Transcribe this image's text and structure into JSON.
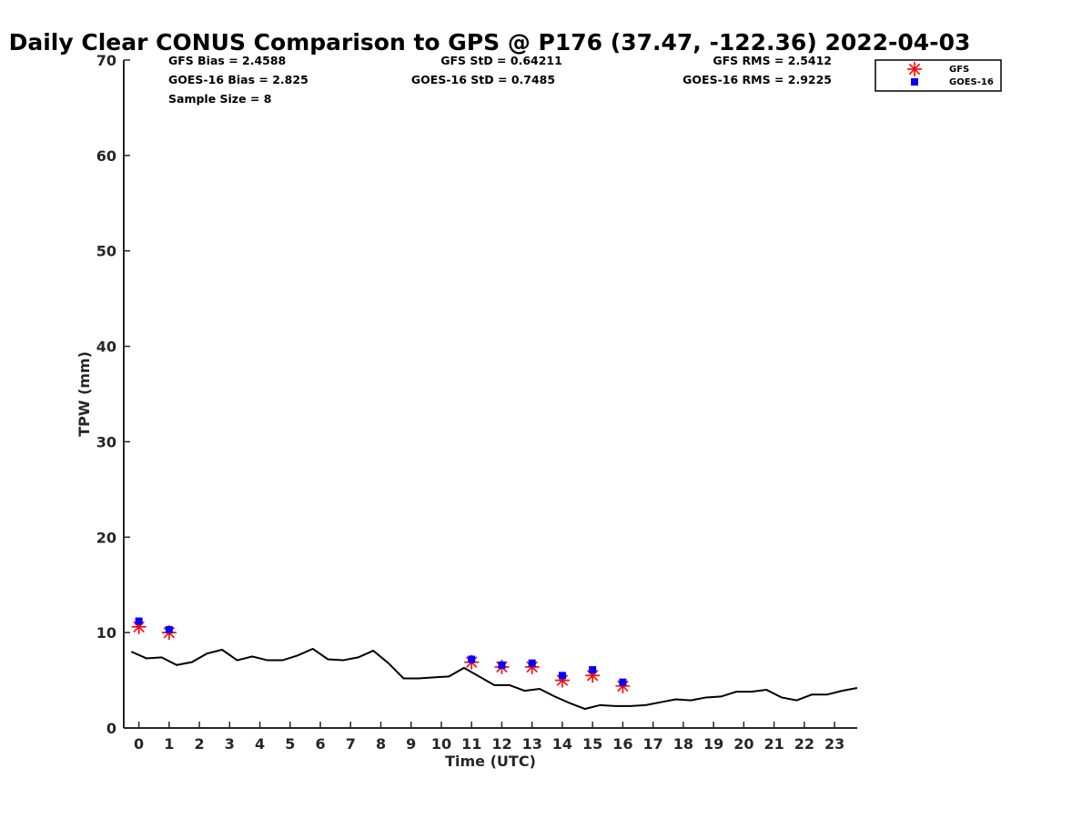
{
  "chart_data": {
    "type": "line",
    "title": "Daily Clear CONUS Comparison to GPS @ P176 (37.47, -122.36) 2022-04-03",
    "xlabel": "Time (UTC)",
    "ylabel": "TPW (mm)",
    "xlim": [
      -0.5,
      23.75
    ],
    "ylim": [
      0,
      70
    ],
    "x_ticks": [
      "0",
      "1",
      "2",
      "3",
      "4",
      "5",
      "6",
      "7",
      "8",
      "9",
      "10",
      "11",
      "12",
      "13",
      "14",
      "15",
      "16",
      "17",
      "18",
      "19",
      "20",
      "21",
      "22",
      "23"
    ],
    "y_ticks": [
      "0",
      "10",
      "20",
      "30",
      "40",
      "50",
      "60",
      "70"
    ],
    "legend_position": "top-right",
    "stats": {
      "gfs_bias": "GFS Bias = 2.4588",
      "goes_bias": "GOES-16 Bias = 2.825",
      "sample_size": "Sample Size = 8",
      "gfs_std": "GFS StD = 0.64211",
      "goes_std": "GOES-16 StD = 0.7485",
      "gfs_rms": "GFS RMS = 2.5412",
      "goes_rms": "GOES-16 RMS = 2.9225"
    },
    "series": [
      {
        "kind": "line",
        "color": "#000000",
        "x": [
          -0.25,
          0.25,
          0.75,
          1.25,
          1.75,
          2.25,
          2.75,
          3.25,
          3.75,
          4.25,
          4.75,
          5.25,
          5.75,
          6.25,
          6.75,
          7.25,
          7.75,
          8.25,
          8.75,
          9.25,
          9.75,
          10.25,
          10.75,
          11.25,
          11.75,
          12.25,
          12.75,
          13.25,
          13.75,
          14.25,
          14.75,
          15.25,
          15.75,
          16.25,
          16.75,
          17.25,
          17.75,
          18.25,
          18.75,
          19.25,
          19.75,
          20.25,
          20.75,
          21.25,
          21.75,
          22.25,
          22.75,
          23.25,
          23.75
        ],
        "values": [
          8.0,
          7.3,
          7.4,
          6.6,
          6.9,
          7.8,
          8.2,
          7.1,
          7.5,
          7.1,
          7.1,
          7.6,
          8.3,
          7.2,
          7.1,
          7.4,
          8.1,
          6.8,
          5.2,
          5.2,
          5.3,
          5.4,
          6.3,
          5.4,
          4.5,
          4.5,
          3.9,
          4.1,
          3.3,
          2.6,
          2.0,
          2.4,
          2.3,
          2.3,
          2.4,
          2.7,
          3.0,
          2.9,
          3.2,
          3.3,
          3.8,
          3.8,
          4.0,
          3.2,
          2.9,
          3.5,
          3.5,
          3.9,
          4.2
        ]
      },
      {
        "name": "GFS",
        "kind": "star",
        "color": "#ff0000",
        "x": [
          0,
          1,
          11,
          12,
          13,
          14,
          15,
          16
        ],
        "values": [
          10.6,
          10.0,
          6.9,
          6.4,
          6.4,
          5.0,
          5.5,
          4.4
        ]
      },
      {
        "name": "GOES-16",
        "kind": "square",
        "color": "#0000ff",
        "x": [
          0,
          1,
          11,
          12,
          13,
          14,
          15,
          16
        ],
        "values": [
          11.2,
          10.3,
          7.2,
          6.6,
          6.8,
          5.5,
          6.1,
          4.8
        ]
      }
    ]
  }
}
